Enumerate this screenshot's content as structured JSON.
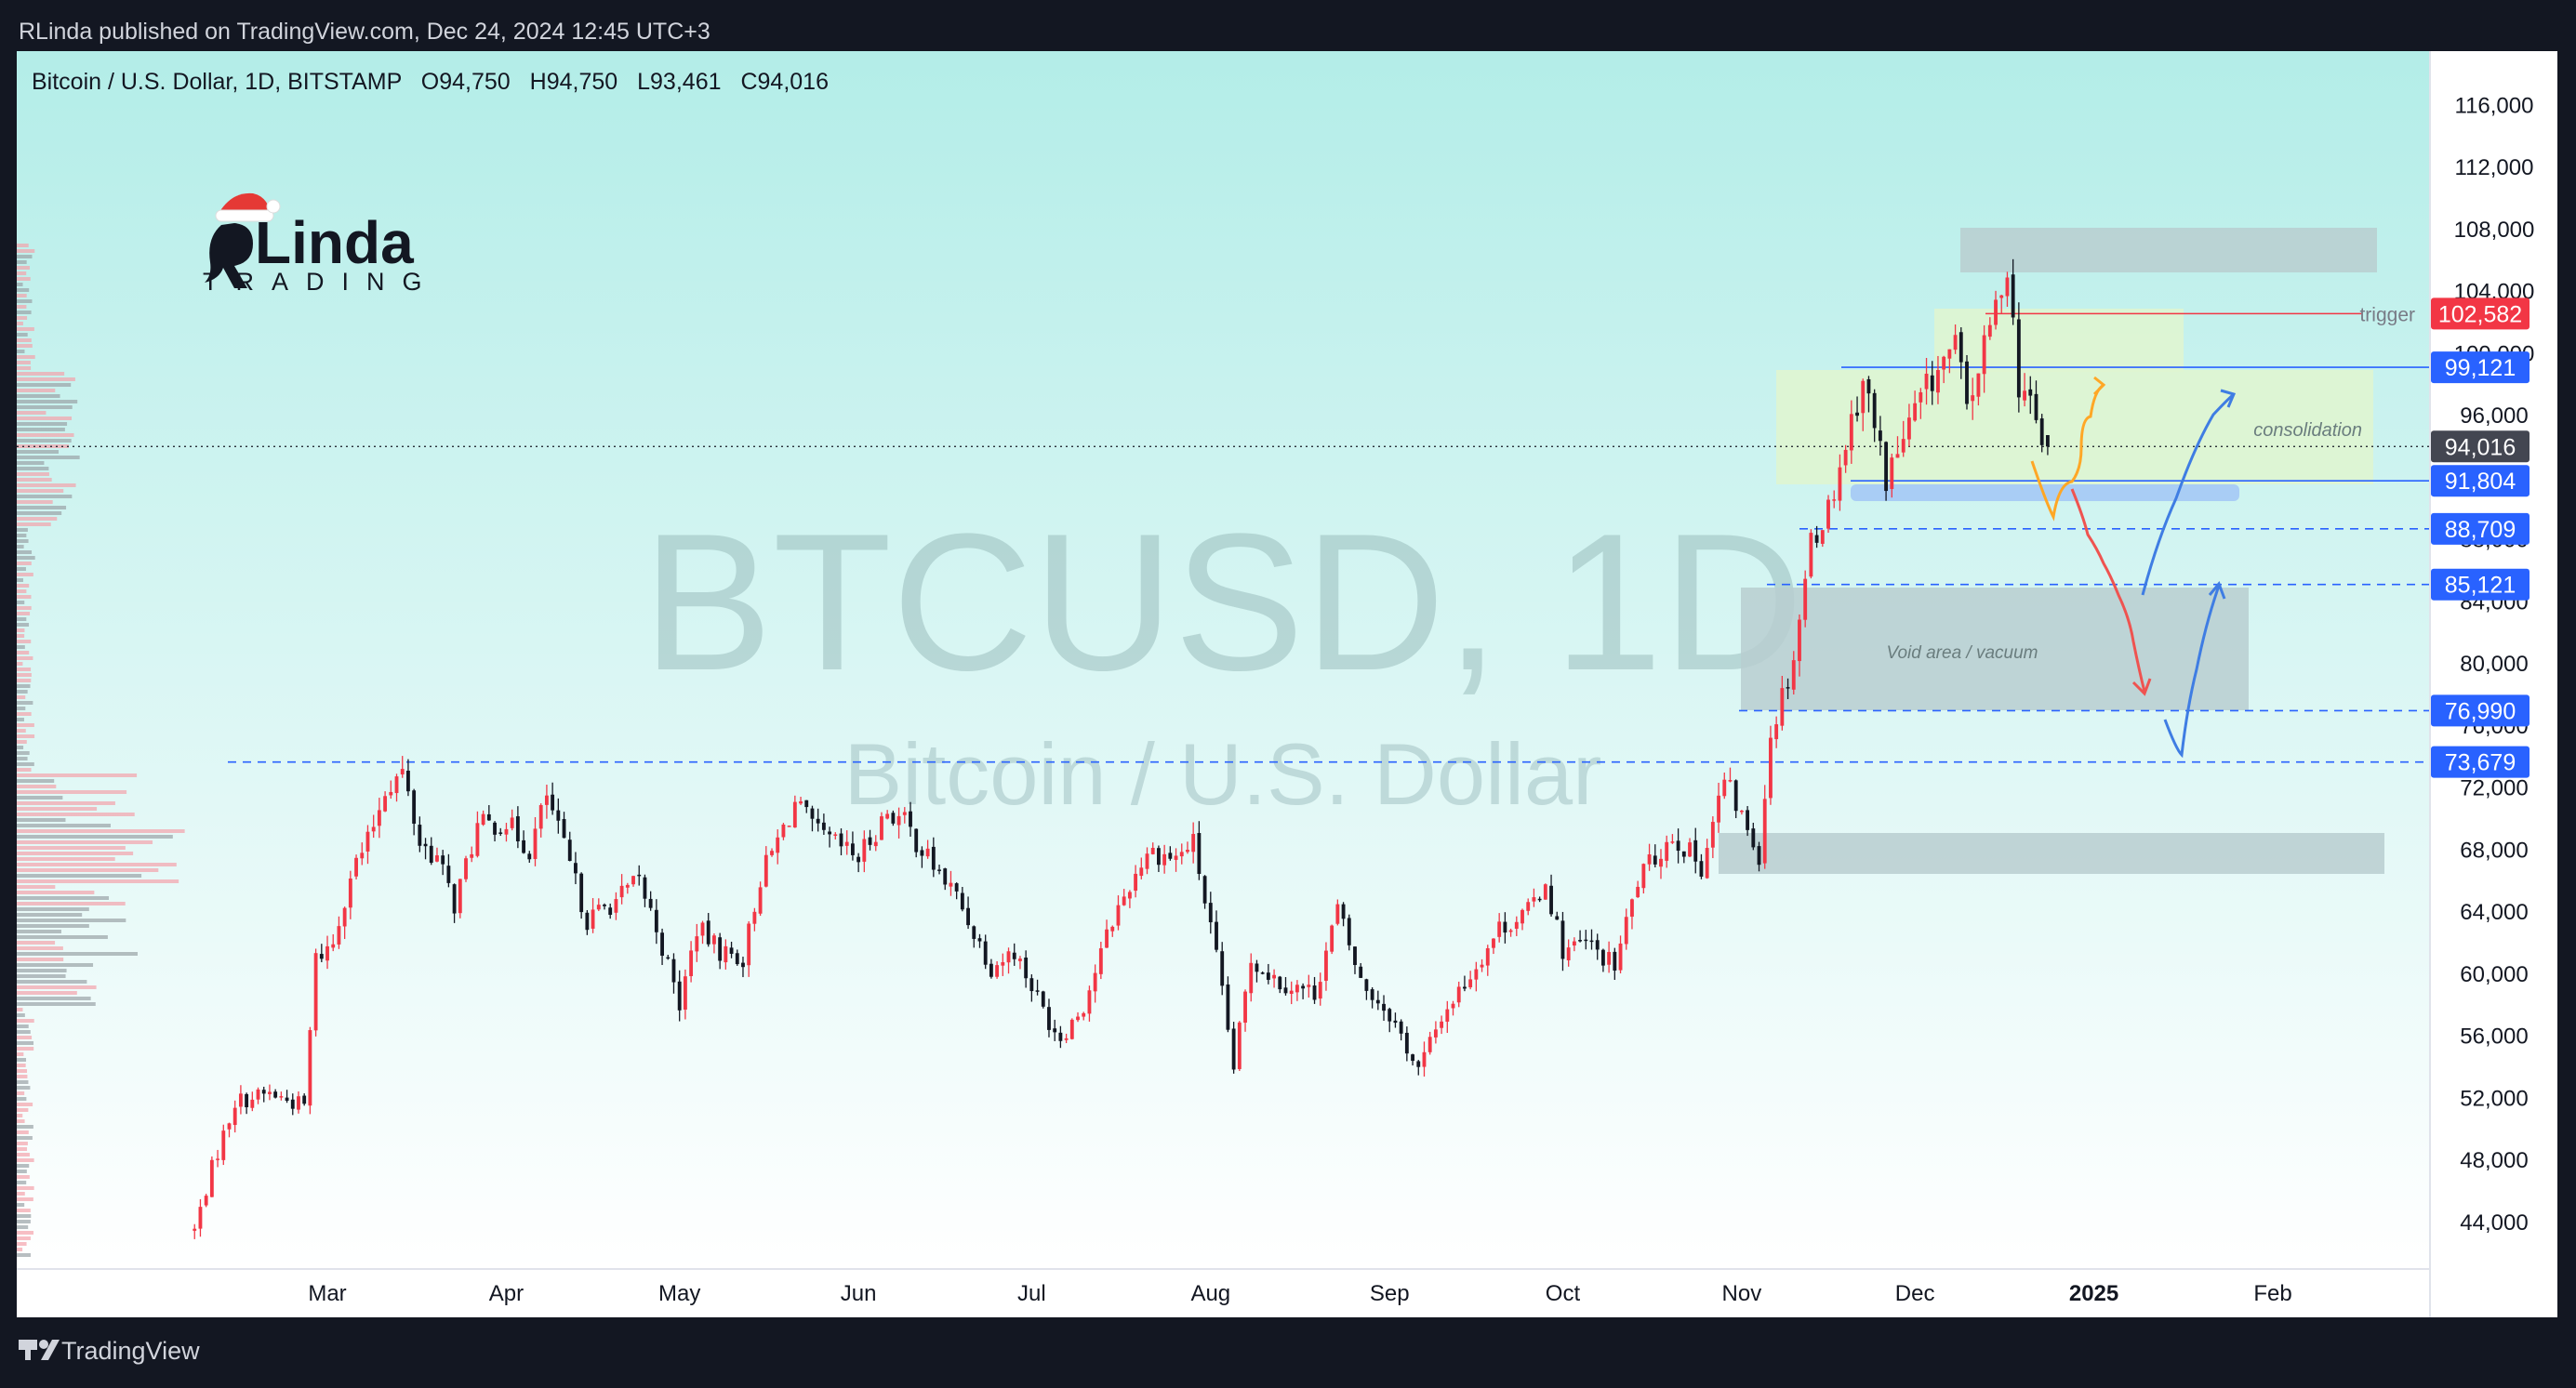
{
  "header": {
    "publish_line": "RLinda published on TradingView.com, Dec 24, 2024 12:45 UTC+3"
  },
  "symbol_line": {
    "name": "Bitcoin / U.S. Dollar, 1D, BITSTAMP",
    "o_label": "O",
    "o": "94,750",
    "h_label": "H",
    "h": "94,750",
    "l_label": "L",
    "l": "93,461",
    "c_label": "C",
    "c": "94,016"
  },
  "logo": {
    "line1": "Linda",
    "line2": "TRADING"
  },
  "watermark": {
    "ticker": "BTCUSD, 1D",
    "description": "Bitcoin / U.S. Dollar"
  },
  "footer": {
    "brand": "TradingView"
  },
  "colors": {
    "background": "#131722",
    "chart_top": "#b3ede8",
    "chart_bottom": "#ffffff",
    "up_candle": "#f23645",
    "down_candle": "#131722",
    "price_label_blue": "#2962ff",
    "price_label_red": "#f23645",
    "price_label_gray": "#434651",
    "zone_gray": "#b9ced0",
    "zone_green": "#dff5d0",
    "zone_blue": "#a9cdf5",
    "arrow_orange": "#ffa726",
    "arrow_red": "#ef5350",
    "arrow_blue": "#3f7de3"
  },
  "chart_data": {
    "type": "candlestick",
    "title": "Bitcoin / U.S. Dollar, 1D, BITSTAMP",
    "ylim": [
      41000,
      119500
    ],
    "y_ticks": [
      44000,
      48000,
      52000,
      56000,
      60000,
      64000,
      68000,
      72000,
      76000,
      80000,
      84000,
      88000,
      92000,
      96000,
      100000,
      104000,
      108000,
      112000,
      116000
    ],
    "y_tick_labels": [
      "44,000",
      "48,000",
      "52,000",
      "56,000",
      "60,000",
      "64,000",
      "68,000",
      "72,000",
      "76,000",
      "80,000",
      "84,000",
      "88,000",
      "92,000",
      "96,000",
      "100,000",
      "104,000",
      "108,000",
      "112,000",
      "116,000"
    ],
    "x_ticks": [
      {
        "label": "Mar",
        "date": "2024-03-01"
      },
      {
        "label": "Apr",
        "date": "2024-04-01"
      },
      {
        "label": "May",
        "date": "2024-05-01"
      },
      {
        "label": "Jun",
        "date": "2024-06-01"
      },
      {
        "label": "Jul",
        "date": "2024-07-01"
      },
      {
        "label": "Aug",
        "date": "2024-08-01"
      },
      {
        "label": "Sep",
        "date": "2024-09-01"
      },
      {
        "label": "Oct",
        "date": "2024-10-01"
      },
      {
        "label": "Nov",
        "date": "2024-11-01"
      },
      {
        "label": "Dec",
        "date": "2024-12-01"
      },
      {
        "label": "2025",
        "date": "2025-01-01",
        "bold": true
      },
      {
        "label": "Feb",
        "date": "2025-02-01"
      }
    ],
    "anchors": [
      [
        "2024-02-07",
        43500
      ],
      [
        "2024-02-10",
        47500
      ],
      [
        "2024-02-14",
        51800
      ],
      [
        "2024-02-20",
        52300
      ],
      [
        "2024-02-26",
        51500
      ],
      [
        "2024-02-28",
        61000
      ],
      [
        "2024-03-02",
        62000
      ],
      [
        "2024-03-05",
        66500
      ],
      [
        "2024-03-08",
        68500
      ],
      [
        "2024-03-11",
        72000
      ],
      [
        "2024-03-14",
        73000
      ],
      [
        "2024-03-17",
        68500
      ],
      [
        "2024-03-20",
        67500
      ],
      [
        "2024-03-23",
        64500
      ],
      [
        "2024-03-27",
        69500
      ],
      [
        "2024-04-01",
        69800
      ],
      [
        "2024-04-05",
        68000
      ],
      [
        "2024-04-08",
        71500
      ],
      [
        "2024-04-12",
        67000
      ],
      [
        "2024-04-15",
        63500
      ],
      [
        "2024-04-20",
        64800
      ],
      [
        "2024-04-24",
        66000
      ],
      [
        "2024-04-27",
        63000
      ],
      [
        "2024-05-01",
        58000
      ],
      [
        "2024-05-04",
        63000
      ],
      [
        "2024-05-08",
        61500
      ],
      [
        "2024-05-12",
        61000
      ],
      [
        "2024-05-15",
        66200
      ],
      [
        "2024-05-21",
        71000
      ],
      [
        "2024-05-25",
        69000
      ],
      [
        "2024-06-01",
        67500
      ],
      [
        "2024-06-06",
        70500
      ],
      [
        "2024-06-09",
        69800
      ],
      [
        "2024-06-12",
        68000
      ],
      [
        "2024-06-18",
        65000
      ],
      [
        "2024-06-24",
        60500
      ],
      [
        "2024-06-28",
        61500
      ],
      [
        "2024-07-04",
        57000
      ],
      [
        "2024-07-06",
        56000
      ],
      [
        "2024-07-10",
        58000
      ],
      [
        "2024-07-15",
        63500
      ],
      [
        "2024-07-21",
        68000
      ],
      [
        "2024-07-26",
        67500
      ],
      [
        "2024-07-29",
        68500
      ],
      [
        "2024-08-02",
        61000
      ],
      [
        "2024-08-05",
        54000
      ],
      [
        "2024-08-08",
        61000
      ],
      [
        "2024-08-13",
        59500
      ],
      [
        "2024-08-19",
        58800
      ],
      [
        "2024-08-23",
        64200
      ],
      [
        "2024-08-27",
        59500
      ],
      [
        "2024-09-01",
        57500
      ],
      [
        "2024-09-06",
        53800
      ],
      [
        "2024-09-10",
        57300
      ],
      [
        "2024-09-15",
        60000
      ],
      [
        "2024-09-20",
        63000
      ],
      [
        "2024-09-25",
        64000
      ],
      [
        "2024-09-28",
        66000
      ],
      [
        "2024-10-01",
        61500
      ],
      [
        "2024-10-05",
        62000
      ],
      [
        "2024-10-10",
        60500
      ],
      [
        "2024-10-14",
        66000
      ],
      [
        "2024-10-20",
        69000
      ],
      [
        "2024-10-25",
        67000
      ],
      [
        "2024-10-29",
        72500
      ],
      [
        "2024-11-04",
        67800
      ],
      [
        "2024-11-06",
        75500
      ],
      [
        "2024-11-10",
        80500
      ],
      [
        "2024-11-13",
        88000
      ],
      [
        "2024-11-16",
        90000
      ],
      [
        "2024-11-22",
        98500
      ],
      [
        "2024-11-26",
        92000
      ],
      [
        "2024-12-02",
        97000
      ],
      [
        "2024-12-05",
        99000
      ],
      [
        "2024-12-08",
        100500
      ],
      [
        "2024-12-10",
        96500
      ],
      [
        "2024-12-14",
        101500
      ],
      [
        "2024-12-17",
        106000
      ],
      [
        "2024-12-19",
        98000
      ],
      [
        "2024-12-20",
        97500
      ],
      [
        "2024-12-22",
        95500
      ],
      [
        "2024-12-23",
        94500
      ],
      [
        "2024-12-24",
        94016
      ]
    ],
    "last_candle": {
      "date": "2024-12-24",
      "open": 94750,
      "high": 94750,
      "low": 93461,
      "close": 94016
    },
    "price_labels": [
      {
        "value": 102582,
        "label": "102,582",
        "style": "red"
      },
      {
        "value": 99121,
        "label": "99,121",
        "style": "blue"
      },
      {
        "value": 94016,
        "label": "94,016",
        "style": "gray"
      },
      {
        "value": 91804,
        "label": "91,804",
        "style": "blue"
      },
      {
        "value": 88709,
        "label": "88,709",
        "style": "blue"
      },
      {
        "value": 85121,
        "label": "85,121",
        "style": "blue"
      },
      {
        "value": 76990,
        "label": "76,990",
        "style": "blue"
      },
      {
        "value": 73679,
        "label": "73,679",
        "style": "blue"
      }
    ],
    "annotations": {
      "trigger": {
        "text": "trigger",
        "value": 102582
      },
      "consolidation": {
        "text": "consolidation"
      },
      "void": {
        "text": "Void area / vacuum"
      }
    }
  }
}
